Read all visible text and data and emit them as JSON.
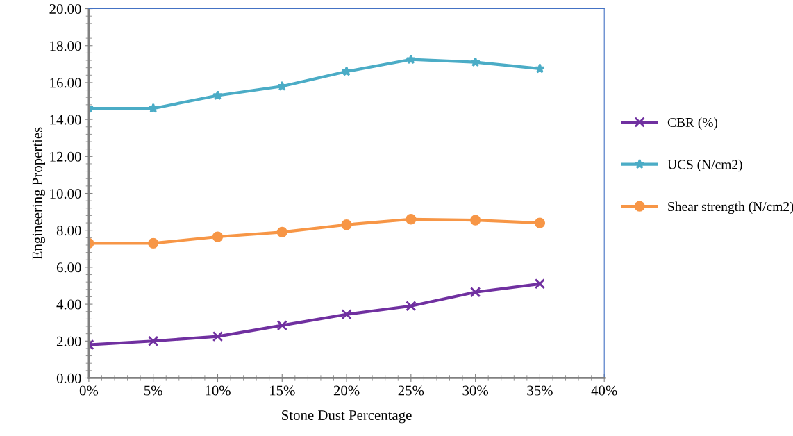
{
  "chart_data": {
    "type": "line",
    "xlabel": "Stone Dust Percentage",
    "ylabel": "Engineering Properties",
    "x": [
      0,
      5,
      10,
      15,
      20,
      25,
      30,
      35
    ],
    "series": [
      {
        "name": "CBR (%)",
        "color": "#7030a0",
        "marker": "cross",
        "values": [
          1.8,
          2.0,
          2.25,
          2.85,
          3.45,
          3.9,
          4.65,
          5.1
        ]
      },
      {
        "name": "UCS (N/cm2)",
        "color": "#4bacc6",
        "marker": "star",
        "values": [
          14.6,
          14.6,
          15.3,
          15.8,
          16.6,
          17.25,
          17.1,
          16.75
        ]
      },
      {
        "name": "Shear strength (N/cm2)",
        "color": "#f79646",
        "marker": "circle",
        "values": [
          7.3,
          7.3,
          7.65,
          7.9,
          8.3,
          8.6,
          8.55,
          8.4
        ]
      }
    ],
    "xlim": [
      0,
      40
    ],
    "xticks": [
      {
        "value": 0,
        "label": "0%"
      },
      {
        "value": 5,
        "label": "5%"
      },
      {
        "value": 10,
        "label": "10%"
      },
      {
        "value": 15,
        "label": "15%"
      },
      {
        "value": 20,
        "label": "20%"
      },
      {
        "value": 25,
        "label": "25%"
      },
      {
        "value": 30,
        "label": "30%"
      },
      {
        "value": 35,
        "label": "35%"
      },
      {
        "value": 40,
        "label": "40%"
      }
    ],
    "ylim": [
      0,
      20
    ],
    "yticks": [
      {
        "value": 0,
        "label": "0.00"
      },
      {
        "value": 2,
        "label": "2.00"
      },
      {
        "value": 4,
        "label": "4.00"
      },
      {
        "value": 6,
        "label": "6.00"
      },
      {
        "value": 8,
        "label": "8.00"
      },
      {
        "value": 10,
        "label": "10.00"
      },
      {
        "value": 12,
        "label": "12.00"
      },
      {
        "value": 14,
        "label": "14.00"
      },
      {
        "value": 16,
        "label": "16.00"
      },
      {
        "value": 18,
        "label": "18.00"
      },
      {
        "value": 20,
        "label": "20.00"
      }
    ],
    "grid": false,
    "legend": "right",
    "line_style": "solid"
  }
}
